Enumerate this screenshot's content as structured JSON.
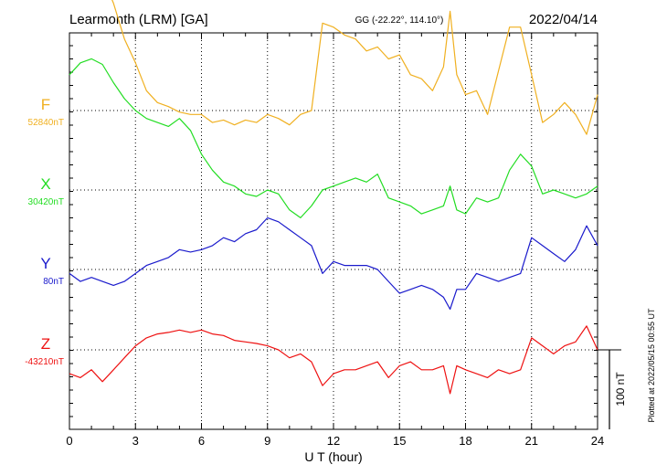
{
  "header": {
    "station": "Learmonth (LRM)  [GA]",
    "coords": "GG (-22.22°, 114.10°)",
    "date": "2022/04/14"
  },
  "side_note": "Plotted at 2022/05/15 00:55 UT",
  "scale_label": "100 nT",
  "chart_data": {
    "type": "line",
    "xlabel": "U T (hour)",
    "xlim": [
      0,
      24
    ],
    "x_ticks": [
      0,
      3,
      6,
      9,
      12,
      15,
      18,
      21,
      24
    ],
    "scale_bar_nT": 100,
    "grid": true,
    "series": [
      {
        "name": "F",
        "baseline": "52840nT",
        "color": "#f0b020",
        "x": [
          0,
          0.5,
          1,
          1.5,
          2,
          2.5,
          3,
          3.5,
          4,
          4.5,
          5,
          5.5,
          6,
          6.5,
          7,
          7.5,
          8,
          8.5,
          9,
          9.5,
          10,
          10.5,
          11,
          11.5,
          12,
          12.5,
          13,
          13.5,
          14,
          14.5,
          15,
          15.5,
          16,
          16.5,
          17,
          17.3,
          17.6,
          18,
          18.5,
          19,
          19.5,
          20,
          20.5,
          21,
          21.5,
          22,
          22.5,
          23,
          23.5,
          24
        ],
        "y": [
          155,
          160,
          178,
          168,
          135,
          90,
          60,
          25,
          10,
          5,
          -2,
          -5,
          -5,
          -15,
          -12,
          -18,
          -12,
          -15,
          -5,
          -10,
          -18,
          -5,
          0,
          110,
          105,
          95,
          90,
          75,
          80,
          65,
          70,
          45,
          40,
          25,
          55,
          125,
          45,
          20,
          25,
          -5,
          50,
          105,
          105,
          45,
          -15,
          -5,
          10,
          -5,
          -30,
          20
        ]
      },
      {
        "name": "X",
        "baseline": "30420nT",
        "color": "#22dd22",
        "x": [
          0,
          0.5,
          1,
          1.5,
          2,
          2.5,
          3,
          3.5,
          4,
          4.5,
          5,
          5.5,
          6,
          6.5,
          7,
          7.5,
          8,
          8.5,
          9,
          9.5,
          10,
          10.5,
          11,
          11.5,
          12,
          12.5,
          13,
          13.5,
          14,
          14.5,
          15,
          15.5,
          16,
          16.5,
          17,
          17.3,
          17.6,
          18,
          18.5,
          19,
          19.5,
          20,
          20.5,
          21,
          21.5,
          22,
          22.5,
          23,
          23.5,
          24
        ],
        "y": [
          145,
          160,
          165,
          158,
          135,
          115,
          100,
          90,
          85,
          80,
          90,
          75,
          45,
          25,
          10,
          5,
          -5,
          -8,
          0,
          -5,
          -25,
          -35,
          -20,
          0,
          5,
          10,
          15,
          10,
          20,
          -10,
          -15,
          -20,
          -30,
          -25,
          -20,
          5,
          -25,
          -30,
          -10,
          -15,
          -10,
          25,
          45,
          30,
          -5,
          0,
          -5,
          -10,
          -5,
          5
        ]
      },
      {
        "name": "Y",
        "baseline": "80nT",
        "color": "#1a1acc",
        "x": [
          0,
          0.5,
          1,
          1.5,
          2,
          2.5,
          3,
          3.5,
          4,
          4.5,
          5,
          5.5,
          6,
          6.5,
          7,
          7.5,
          8,
          8.5,
          9,
          9.5,
          10,
          10.5,
          11,
          11.5,
          12,
          12.5,
          13,
          13.5,
          14,
          14.5,
          15,
          15.5,
          16,
          16.5,
          17,
          17.3,
          17.6,
          18,
          18.5,
          19,
          19.5,
          20,
          20.5,
          21,
          21.5,
          22,
          22.5,
          23,
          23.5,
          24
        ],
        "y": [
          -5,
          -15,
          -10,
          -15,
          -20,
          -15,
          -5,
          5,
          10,
          15,
          25,
          22,
          25,
          30,
          40,
          35,
          45,
          50,
          65,
          60,
          50,
          40,
          30,
          -5,
          10,
          5,
          5,
          5,
          0,
          -15,
          -30,
          -25,
          -20,
          -25,
          -35,
          -50,
          -25,
          -25,
          -5,
          -10,
          -15,
          -10,
          -5,
          40,
          30,
          20,
          10,
          25,
          55,
          30
        ]
      },
      {
        "name": "Z",
        "baseline": "-43210nT",
        "color": "#ee1111",
        "x": [
          0,
          0.5,
          1,
          1.5,
          2,
          2.5,
          3,
          3.5,
          4,
          4.5,
          5,
          5.5,
          6,
          6.5,
          7,
          7.5,
          8,
          8.5,
          9,
          9.5,
          10,
          10.5,
          11,
          11.5,
          12,
          12.5,
          13,
          13.5,
          14,
          14.5,
          15,
          15.5,
          16,
          16.5,
          17,
          17.3,
          17.6,
          18,
          18.5,
          19,
          19.5,
          20,
          20.5,
          21,
          21.5,
          22,
          22.5,
          23,
          23.5,
          24
        ],
        "y": [
          -30,
          -35,
          -25,
          -40,
          -25,
          -10,
          5,
          15,
          20,
          22,
          25,
          22,
          25,
          20,
          18,
          12,
          10,
          8,
          5,
          0,
          -10,
          -5,
          -15,
          -45,
          -30,
          -25,
          -25,
          -20,
          -15,
          -35,
          -20,
          -15,
          -25,
          -25,
          -20,
          -55,
          -20,
          -25,
          -30,
          -35,
          -25,
          -30,
          -25,
          15,
          5,
          -5,
          5,
          10,
          30,
          0
        ]
      }
    ]
  }
}
